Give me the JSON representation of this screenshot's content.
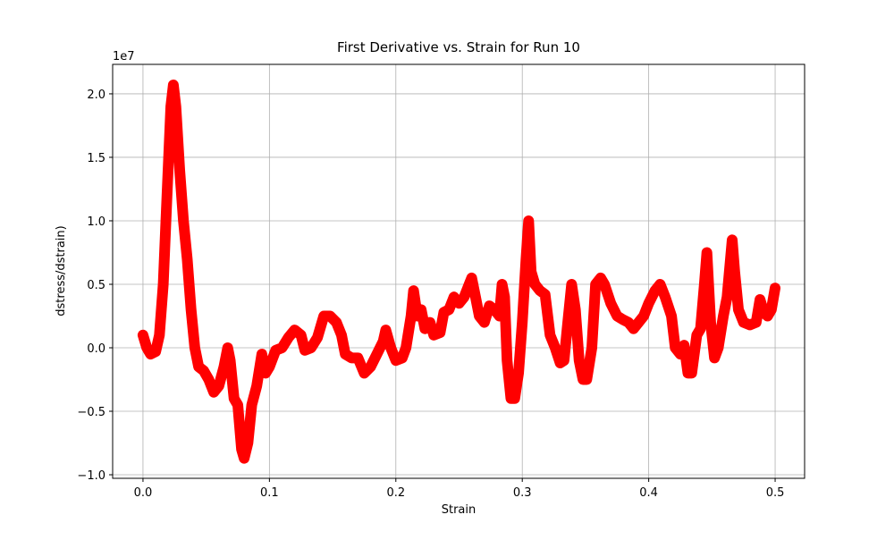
{
  "chart_data": {
    "type": "line",
    "title": "First Derivative vs. Strain for Run 10",
    "x_label": "Strain",
    "y_label": "dstress/dstrain)",
    "y_offset_label": "1e7",
    "xlim": [
      -0.024,
      0.5233
    ],
    "ylim": [
      -1.028,
      2.232
    ],
    "xticks": [
      {
        "value": 0,
        "label": "0.0"
      },
      0.1,
      0.2,
      0.3,
      0.4,
      0.5
    ],
    "yticks": [
      {
        "value": -1,
        "label": "−1.0"
      },
      {
        "value": -0.5,
        "label": "−0.5"
      },
      {
        "value": 0,
        "label": "0.0"
      },
      0.5,
      {
        "value": 1,
        "label": "1.0"
      },
      1.5,
      {
        "value": 2,
        "label": "2.0"
      }
    ],
    "grid": true,
    "series": [
      {
        "color": "#ff0000",
        "x": [
          0.0,
          0.003,
          0.006,
          0.01,
          0.013,
          0.016,
          0.019,
          0.022,
          0.024,
          0.026,
          0.029,
          0.032,
          0.035,
          0.038,
          0.041,
          0.044,
          0.048,
          0.052,
          0.056,
          0.06,
          0.064,
          0.067,
          0.069,
          0.072,
          0.075,
          0.078,
          0.08,
          0.083,
          0.086,
          0.09,
          0.094,
          0.097,
          0.1,
          0.105,
          0.11,
          0.115,
          0.12,
          0.125,
          0.128,
          0.133,
          0.138,
          0.143,
          0.148,
          0.153,
          0.157,
          0.16,
          0.165,
          0.17,
          0.175,
          0.18,
          0.185,
          0.19,
          0.192,
          0.196,
          0.2,
          0.205,
          0.208,
          0.212,
          0.214,
          0.217,
          0.22,
          0.223,
          0.227,
          0.23,
          0.235,
          0.238,
          0.242,
          0.246,
          0.25,
          0.254,
          0.258,
          0.26,
          0.263,
          0.266,
          0.27,
          0.274,
          0.278,
          0.282,
          0.284,
          0.286,
          0.288,
          0.291,
          0.294,
          0.297,
          0.3,
          0.303,
          0.305,
          0.307,
          0.31,
          0.314,
          0.318,
          0.322,
          0.326,
          0.33,
          0.333,
          0.336,
          0.339,
          0.342,
          0.345,
          0.348,
          0.351,
          0.355,
          0.358,
          0.362,
          0.365,
          0.37,
          0.375,
          0.38,
          0.384,
          0.388,
          0.392,
          0.396,
          0.4,
          0.405,
          0.409,
          0.413,
          0.418,
          0.421,
          0.425,
          0.428,
          0.431,
          0.434,
          0.438,
          0.441,
          0.444,
          0.446,
          0.449,
          0.452,
          0.455,
          0.459,
          0.462,
          0.466,
          0.468,
          0.471,
          0.475,
          0.48,
          0.485,
          0.488,
          0.491,
          0.494,
          0.497,
          0.5
        ],
        "values": [
          0.1,
          0.0,
          -0.05,
          -0.03,
          0.1,
          0.5,
          1.2,
          1.9,
          2.07,
          1.9,
          1.4,
          1.0,
          0.7,
          0.3,
          0.0,
          -0.15,
          -0.18,
          -0.25,
          -0.35,
          -0.3,
          -0.15,
          0.0,
          -0.1,
          -0.4,
          -0.45,
          -0.8,
          -0.87,
          -0.75,
          -0.45,
          -0.3,
          -0.05,
          -0.2,
          -0.15,
          -0.02,
          0.0,
          0.08,
          0.14,
          0.1,
          -0.02,
          0.0,
          0.08,
          0.25,
          0.25,
          0.2,
          0.1,
          -0.05,
          -0.08,
          -0.08,
          -0.2,
          -0.15,
          -0.05,
          0.05,
          0.14,
          0.0,
          -0.1,
          -0.08,
          0.0,
          0.25,
          0.45,
          0.25,
          0.3,
          0.15,
          0.2,
          0.1,
          0.12,
          0.28,
          0.3,
          0.4,
          0.35,
          0.4,
          0.5,
          0.55,
          0.4,
          0.25,
          0.2,
          0.33,
          0.3,
          0.25,
          0.5,
          0.4,
          -0.1,
          -0.4,
          -0.4,
          -0.2,
          0.2,
          0.7,
          1.0,
          0.6,
          0.5,
          0.45,
          0.42,
          0.1,
          0.0,
          -0.12,
          -0.1,
          0.2,
          0.5,
          0.3,
          -0.1,
          -0.25,
          -0.25,
          0.0,
          0.5,
          0.55,
          0.5,
          0.35,
          0.25,
          0.22,
          0.2,
          0.15,
          0.2,
          0.25,
          0.35,
          0.45,
          0.5,
          0.4,
          0.25,
          0.0,
          -0.05,
          0.02,
          -0.2,
          -0.2,
          0.1,
          0.15,
          0.5,
          0.75,
          0.2,
          -0.08,
          0.0,
          0.25,
          0.4,
          0.85,
          0.6,
          0.3,
          0.2,
          0.18,
          0.2,
          0.38,
          0.28,
          0.25,
          0.3,
          0.47
        ]
      }
    ]
  }
}
